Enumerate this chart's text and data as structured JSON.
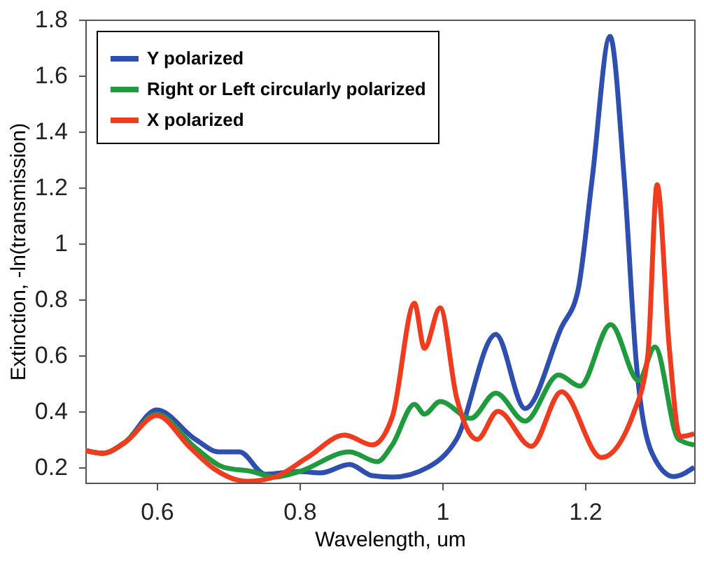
{
  "chart_data": {
    "type": "line",
    "xlabel": "Wavelength, um",
    "ylabel": "Extinction, -ln(transmission)",
    "xlim": [
      0.5,
      1.353
    ],
    "ylim": [
      0.145,
      1.8
    ],
    "xticks": [
      0.6,
      0.8,
      1,
      1.2
    ],
    "yticks": [
      0.2,
      0.4,
      0.6,
      0.8,
      1,
      1.2,
      1.4,
      1.6,
      1.8
    ],
    "grid": false,
    "legend": "top left",
    "line_style": "solid",
    "marker": "none",
    "series": [
      {
        "name": "Y polarized",
        "color": "#2e4fb0",
        "x": [
          0.5,
          0.524,
          0.556,
          0.6,
          0.654,
          0.687,
          0.716,
          0.752,
          0.798,
          0.83,
          0.87,
          0.902,
          0.93,
          0.98,
          1.02,
          1.075,
          1.116,
          1.167,
          1.19,
          1.21,
          1.235,
          1.255,
          1.272,
          1.294,
          1.324,
          1.353
        ],
        "values": [
          0.26,
          0.25,
          0.29,
          0.405,
          0.3,
          0.255,
          0.255,
          0.175,
          0.185,
          0.18,
          0.21,
          0.17,
          0.165,
          0.2,
          0.3,
          0.675,
          0.41,
          0.7,
          0.83,
          1.23,
          1.74,
          1.23,
          0.57,
          0.25,
          0.167,
          0.2
        ]
      },
      {
        "name": "Right or Left circularly polarized",
        "color": "#1f9a3c",
        "x": [
          0.5,
          0.524,
          0.556,
          0.6,
          0.654,
          0.694,
          0.733,
          0.765,
          0.8,
          0.87,
          0.909,
          0.93,
          0.961,
          0.975,
          0.997,
          1.04,
          1.075,
          1.116,
          1.163,
          1.193,
          1.236,
          1.275,
          1.298,
          1.331,
          1.353
        ],
        "values": [
          0.26,
          0.25,
          0.29,
          0.39,
          0.27,
          0.2,
          0.185,
          0.165,
          0.185,
          0.255,
          0.22,
          0.28,
          0.425,
          0.39,
          0.435,
          0.375,
          0.465,
          0.365,
          0.53,
          0.49,
          0.71,
          0.51,
          0.63,
          0.3,
          0.28
        ]
      },
      {
        "name": "X polarized",
        "color": "#f03c1e",
        "x": [
          0.5,
          0.524,
          0.556,
          0.6,
          0.647,
          0.68,
          0.726,
          0.765,
          0.811,
          0.863,
          0.902,
          0.93,
          0.961,
          0.975,
          0.997,
          1.02,
          1.049,
          1.078,
          1.125,
          1.167,
          1.223,
          1.269,
          1.288,
          1.301,
          1.318,
          1.333,
          1.353
        ],
        "values": [
          0.26,
          0.25,
          0.29,
          0.385,
          0.27,
          0.195,
          0.15,
          0.165,
          0.235,
          0.315,
          0.28,
          0.38,
          0.786,
          0.625,
          0.77,
          0.45,
          0.3,
          0.4,
          0.275,
          0.47,
          0.235,
          0.4,
          0.6,
          1.21,
          0.63,
          0.31,
          0.32
        ]
      }
    ]
  }
}
